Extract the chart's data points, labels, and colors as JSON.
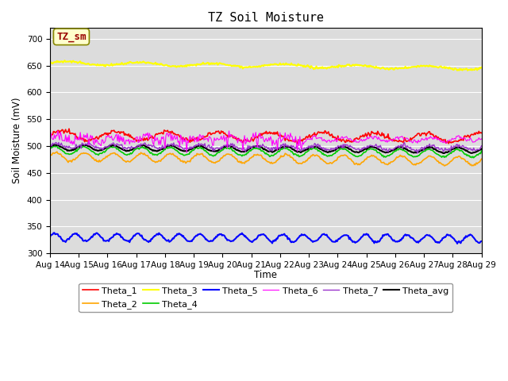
{
  "title": "TZ Soil Moisture",
  "ylabel": "Soil Moisture (mV)",
  "xlabel": "Time",
  "annotation": "TZ_sm",
  "ylim": [
    300,
    720
  ],
  "yticks": [
    300,
    350,
    400,
    450,
    500,
    550,
    600,
    650,
    700
  ],
  "date_start": 14,
  "date_end": 29,
  "n_points": 500,
  "series": {
    "Theta_1": {
      "color": "#FF0000"
    },
    "Theta_2": {
      "color": "#FFA500"
    },
    "Theta_3": {
      "color": "#FFFF00"
    },
    "Theta_4": {
      "color": "#00CC00"
    },
    "Theta_5": {
      "color": "#0000FF"
    },
    "Theta_6": {
      "color": "#FF00FF"
    },
    "Theta_7": {
      "color": "#9933CC"
    },
    "Theta_avg": {
      "color": "#000000"
    }
  },
  "background_color": "#DCDCDC",
  "legend_fontsize": 8,
  "title_fontsize": 11,
  "tick_fontsize": 7.5
}
